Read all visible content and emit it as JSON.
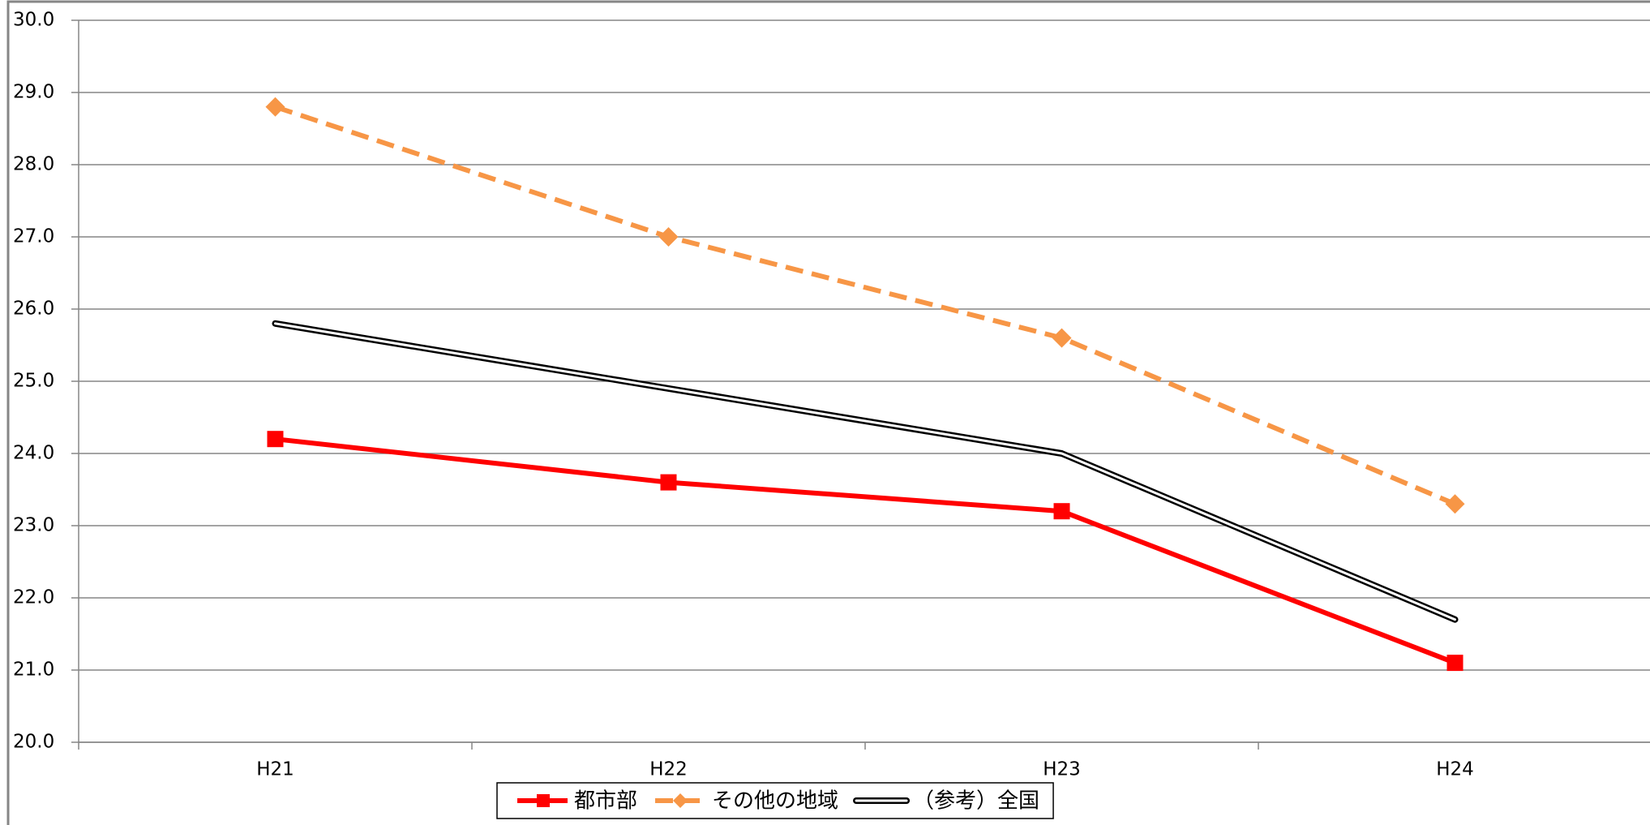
{
  "chart_data": {
    "type": "line",
    "categories": [
      "H21",
      "H22",
      "H23",
      "H24"
    ],
    "series": [
      {
        "name": "都市部",
        "color": "#ff0000",
        "line_style": "solid",
        "marker": "square",
        "values": [
          24.2,
          23.6,
          23.2,
          21.1
        ]
      },
      {
        "name": "その他の地域",
        "color": "#f79646",
        "line_style": "dashed",
        "marker": "diamond",
        "values": [
          28.8,
          27.0,
          25.6,
          23.3
        ]
      },
      {
        "name": "（参考）全国",
        "color": "#000000",
        "line_style": "double",
        "marker": "none",
        "values": [
          25.8,
          24.9,
          24.0,
          21.7
        ]
      }
    ],
    "ylim": [
      20,
      30
    ],
    "yticks": [
      {
        "value": 20,
        "label": "20.0"
      },
      {
        "value": 21,
        "label": "21.0"
      },
      {
        "value": 22,
        "label": "22.0"
      },
      {
        "value": 23,
        "label": "23.0"
      },
      {
        "value": 24,
        "label": "24.0"
      },
      {
        "value": 25,
        "label": "25.0"
      },
      {
        "value": 26,
        "label": "26.0"
      },
      {
        "value": 27,
        "label": "27.0"
      },
      {
        "value": 28,
        "label": "28.0"
      },
      {
        "value": 29,
        "label": "29.0"
      },
      {
        "value": 30,
        "label": "30.0"
      }
    ],
    "grid": true,
    "legend": "bottom"
  }
}
